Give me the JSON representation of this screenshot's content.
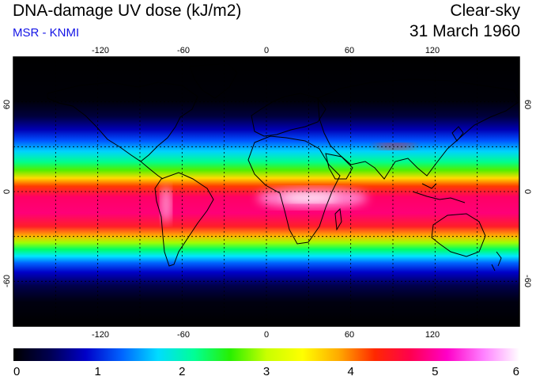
{
  "header": {
    "title": "DNA-damage UV dose (kJ/m2)",
    "source": "MSR - KNMI",
    "sky_condition": "Clear-sky",
    "date": "31 March 1960"
  },
  "map": {
    "projection": "equirectangular",
    "lon_range": [
      -180,
      180
    ],
    "lat_range": [
      -90,
      90
    ],
    "lon_ticks": [
      -120,
      -60,
      0,
      60,
      120
    ],
    "lon_tick_labels": [
      "-120",
      "-60",
      "0",
      "60",
      "120"
    ],
    "lat_ticks": [
      60,
      0,
      -60
    ],
    "lat_tick_labels": [
      "60",
      "0",
      "-60"
    ],
    "gridlines": "dashed every 30 degrees",
    "background_color": "#000000",
    "coastline_color": "#000000"
  },
  "colorbar": {
    "min": 0,
    "max": 6,
    "tick_labels": [
      "0",
      "1",
      "2",
      "3",
      "4",
      "5",
      "6"
    ],
    "colors": [
      "#000000",
      "#000050",
      "#0000c8",
      "#0064ff",
      "#00dcff",
      "#00ff96",
      "#28f000",
      "#c8ff00",
      "#ffff00",
      "#ffaa00",
      "#ff2800",
      "#ff0050",
      "#ff00c8",
      "#ff80ff",
      "#ffffff"
    ]
  }
}
